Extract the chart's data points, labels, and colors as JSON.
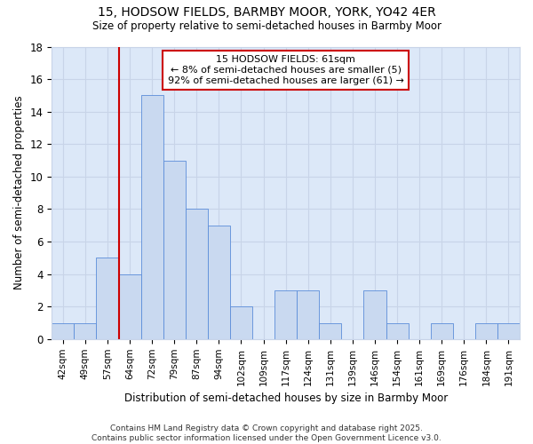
{
  "title1": "15, HODSOW FIELDS, BARMBY MOOR, YORK, YO42 4ER",
  "title2": "Size of property relative to semi-detached houses in Barmby Moor",
  "xlabel": "Distribution of semi-detached houses by size in Barmby Moor",
  "ylabel": "Number of semi-detached properties",
  "categories": [
    "42sqm",
    "49sqm",
    "57sqm",
    "64sqm",
    "72sqm",
    "79sqm",
    "87sqm",
    "94sqm",
    "102sqm",
    "109sqm",
    "117sqm",
    "124sqm",
    "131sqm",
    "139sqm",
    "146sqm",
    "154sqm",
    "161sqm",
    "169sqm",
    "176sqm",
    "184sqm",
    "191sqm"
  ],
  "values": [
    1,
    1,
    5,
    4,
    15,
    11,
    8,
    7,
    2,
    0,
    3,
    3,
    1,
    0,
    3,
    1,
    0,
    1,
    0,
    1,
    1
  ],
  "bar_color": "#c9d9f0",
  "bar_edge_color": "#5b8dd9",
  "vline_x_index": 3,
  "annotation_line1": "15 HODSOW FIELDS: 61sqm",
  "annotation_line2": "← 8% of semi-detached houses are smaller (5)",
  "annotation_line3": "92% of semi-detached houses are larger (61) →",
  "annotation_box_facecolor": "#ffffff",
  "annotation_box_edgecolor": "#cc0000",
  "vline_color": "#cc0000",
  "ylim": [
    0,
    18
  ],
  "yticks": [
    0,
    2,
    4,
    6,
    8,
    10,
    12,
    14,
    16,
    18
  ],
  "grid_color": "#c8d4e8",
  "bg_color": "#dce8f8",
  "footer": "Contains HM Land Registry data © Crown copyright and database right 2025.\nContains public sector information licensed under the Open Government Licence v3.0."
}
